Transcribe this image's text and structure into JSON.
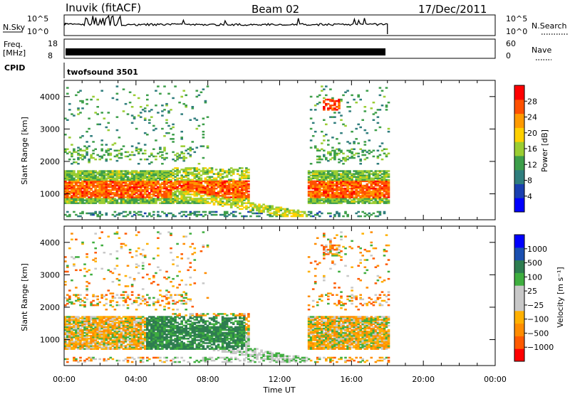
{
  "header": {
    "station": "Inuvik (fitACF)",
    "beam": "Beam 02",
    "date": "17/Dec/2011"
  },
  "top_panels": {
    "nsky_label": "N.Sky",
    "nsky_ticks": [
      "10^5",
      "10^0"
    ],
    "nsearch_label": "N.Search",
    "nsearch_ticks": [
      "10^5",
      "10^0"
    ],
    "freq_label_line1": "Freq.",
    "freq_label_line2": "[MHz]",
    "freq_ticks": [
      "18",
      "8"
    ],
    "nave_label": "Nave",
    "nave_ticks": [
      "60",
      "0"
    ],
    "cpid_label": "CPID",
    "cpid_value": "twofsound 3501"
  },
  "colors": {
    "power_scale": [
      "#0000ff",
      "#1a3fb0",
      "#2f7d7d",
      "#3d9e4a",
      "#9acd32",
      "#ffd000",
      "#ff9a00",
      "#ff5000",
      "#ff0000"
    ],
    "velocity_scale": [
      "#ff0000",
      "#ff5a00",
      "#ff8c00",
      "#ffb000",
      "#c8c8c8",
      "#c8c8c8",
      "#3fae3f",
      "#2e7d50",
      "#1a4fb0",
      "#0000ff"
    ]
  },
  "chart_data": [
    {
      "type": "heatmap",
      "title": "Power",
      "xlabel": "Time UT",
      "ylabel": "Slant Range [km]",
      "x_ticks": [
        "00:00",
        "04:00",
        "08:00",
        "12:00",
        "16:00",
        "20:00",
        "00:00"
      ],
      "y_ticks": [
        "1000",
        "2000",
        "3000",
        "4000"
      ],
      "ylim": [
        200,
        4500
      ],
      "colorbar": {
        "label": "Power [dB]",
        "ticks": [
          "4",
          "8",
          "12",
          "16",
          "20",
          "24",
          "28"
        ],
        "range": [
          0,
          30
        ]
      },
      "data_end_hour": 18
    },
    {
      "type": "heatmap",
      "title": "Velocity",
      "xlabel": "Time UT",
      "ylabel": "Slant Range [km]",
      "x_ticks": [
        "00:00",
        "04:00",
        "08:00",
        "12:00",
        "16:00",
        "20:00",
        "00:00"
      ],
      "y_ticks": [
        "1000",
        "2000",
        "3000",
        "4000"
      ],
      "ylim": [
        200,
        4500
      ],
      "colorbar": {
        "label": "Velocity [m s⁻¹]",
        "ticks": [
          "1000",
          "500",
          "100",
          "25",
          "−25",
          "−100",
          "−500",
          "−1000"
        ]
      },
      "data_end_hour": 18
    }
  ]
}
